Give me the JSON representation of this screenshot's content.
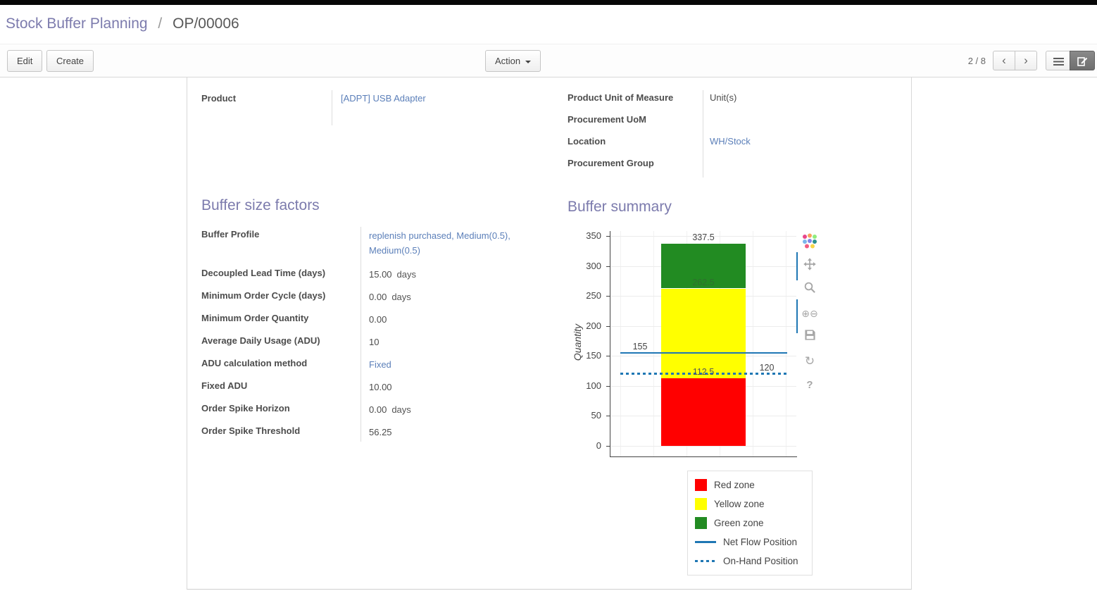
{
  "breadcrumb": {
    "parent": "Stock Buffer Planning",
    "separator": "/",
    "current": "OP/00006"
  },
  "toolbar": {
    "edit_label": "Edit",
    "create_label": "Create",
    "action_label": "Action",
    "pager_text": "2 / 8",
    "prev_icon": "‹",
    "next_icon": "›"
  },
  "form": {
    "product": {
      "label": "Product",
      "value": "[ADPT] USB Adapter"
    },
    "right_fields": [
      {
        "label": "Product Unit of Measure",
        "value": "Unit(s)",
        "link": false
      },
      {
        "label": "Procurement UoM",
        "value": "",
        "link": false
      },
      {
        "label": "Location",
        "value": "WH/Stock",
        "link": true
      },
      {
        "label": "Procurement Group",
        "value": "",
        "link": false
      }
    ],
    "buffer_factors": {
      "title": "Buffer size factors",
      "rows": [
        {
          "label": "Buffer Profile",
          "value": "replenish purchased, Medium(0.5), Medium(0.5)",
          "link": true,
          "suffix": ""
        },
        {
          "label": "Decoupled Lead Time (days)",
          "value": "15.00",
          "link": false,
          "suffix": "days"
        },
        {
          "label": "Minimum Order Cycle (days)",
          "value": "0.00",
          "link": false,
          "suffix": "days"
        },
        {
          "label": "Minimum Order Quantity",
          "value": "0.00",
          "link": false,
          "suffix": ""
        },
        {
          "label": "Average Daily Usage (ADU)",
          "value": "10",
          "link": false,
          "suffix": ""
        },
        {
          "label": "ADU calculation method",
          "value": "Fixed",
          "link": true,
          "suffix": ""
        },
        {
          "label": "Fixed ADU",
          "value": "10.00",
          "link": false,
          "suffix": ""
        },
        {
          "label": "Order Spike Horizon",
          "value": "0.00",
          "link": false,
          "suffix": "days"
        },
        {
          "label": "Order Spike Threshold",
          "value": "56.25",
          "link": false,
          "suffix": ""
        }
      ]
    },
    "buffer_summary_title": "Buffer summary"
  },
  "chart_data": {
    "type": "bar",
    "ylabel": "Quantity",
    "ylim": [
      0,
      350
    ],
    "yticks": [
      0,
      50,
      100,
      150,
      200,
      250,
      300,
      350
    ],
    "grid": true,
    "zones": [
      {
        "name": "Red zone",
        "from": 0,
        "to": 112.5,
        "color": "#ff0000"
      },
      {
        "name": "Yellow zone",
        "from": 112.5,
        "to": 262.5,
        "color": "#ffff00"
      },
      {
        "name": "Green zone",
        "from": 262.5,
        "to": 337.5,
        "color": "#228b22"
      }
    ],
    "lines": [
      {
        "name": "Net Flow Position",
        "value": 155,
        "style": "solid",
        "color": "#1f77b4"
      },
      {
        "name": "On-Hand Position",
        "value": 120,
        "style": "dotted",
        "color": "#1f77b4"
      }
    ],
    "annotations": [
      {
        "text": "337.5",
        "value": 337.5,
        "anchor": "bar",
        "color": "#444444"
      },
      {
        "text": "262.5",
        "value": 262.5,
        "anchor": "bar",
        "color": "#2f6f2f"
      },
      {
        "text": "155",
        "value": 155,
        "anchor": "left",
        "color": "#444444"
      },
      {
        "text": "112.5",
        "value": 112.5,
        "anchor": "bar",
        "color": "#555555"
      },
      {
        "text": "120",
        "value": 120,
        "anchor": "right",
        "color": "#444444"
      }
    ],
    "legend": [
      {
        "label": "Red zone",
        "swatch": "square",
        "color": "#ff0000"
      },
      {
        "label": "Yellow zone",
        "swatch": "square",
        "color": "#ffff00"
      },
      {
        "label": "Green zone",
        "swatch": "square",
        "color": "#228b22"
      },
      {
        "label": "Net Flow Position",
        "swatch": "line",
        "color": "#1f77b4"
      },
      {
        "label": "On-Hand Position",
        "swatch": "dotted",
        "color": "#1f77b4"
      }
    ],
    "modebar": [
      "plotly-logo",
      "pan",
      "zoom",
      "zoom-in-out",
      "save",
      "autoscale",
      "help"
    ]
  }
}
